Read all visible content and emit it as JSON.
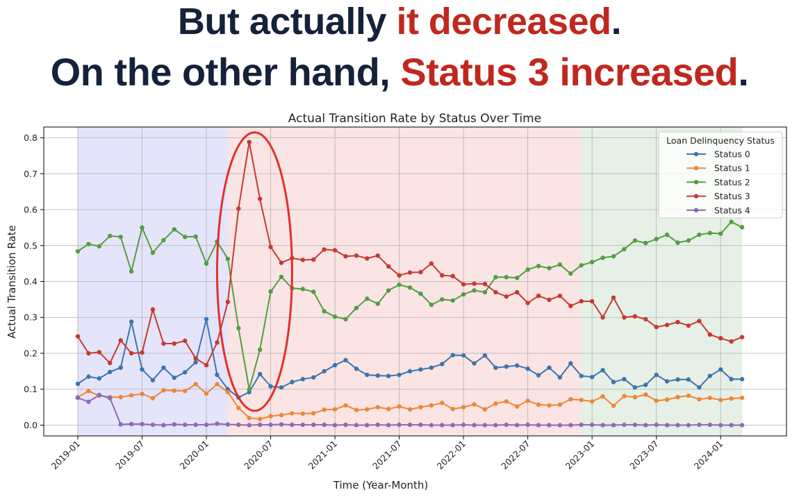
{
  "headline": {
    "line1_a": "But actually ",
    "line1_b": "it decreased",
    "line1_c": ".",
    "line2_a": "On the other hand, ",
    "line2_b": "Status 3 increased",
    "line2_c": "."
  },
  "colors": {
    "headline_text": "#14223a",
    "highlight": "#c0281e",
    "period1_bg": "#e4e4fb",
    "period2_bg": "#fae4e4",
    "period3_bg": "#e6f0e6",
    "annotation_ellipse": "#e0302a"
  },
  "chart_data": {
    "type": "line",
    "title": "Actual Transition Rate by Status Over Time",
    "xlabel": "Time (Year-Month)",
    "ylabel": "Actual Transition Rate",
    "ylim": [
      -0.03,
      0.83
    ],
    "yticks": [
      "0.0",
      "0.1",
      "0.2",
      "0.3",
      "0.4",
      "0.5",
      "0.6",
      "0.7",
      "0.8"
    ],
    "xticks": [
      "2019-01",
      "2019-07",
      "2020-01",
      "2020-07",
      "2021-01",
      "2021-07",
      "2022-01",
      "2022-07",
      "2023-01",
      "2023-07",
      "2024-01"
    ],
    "x_start": "2019-01",
    "grid": true,
    "legend_title": "Loan Delinquency Status",
    "legend_position": "top-right",
    "shaded_periods": [
      {
        "start": "2019-01",
        "end": "2020-03",
        "color": "#e4e4fb"
      },
      {
        "start": "2020-03",
        "end": "2022-12",
        "color": "#fae4e4"
      },
      {
        "start": "2022-12",
        "end": "2024-03",
        "color": "#e6f0e6"
      }
    ],
    "annotation": {
      "type": "ellipse",
      "center": "2020-05",
      "x_from": "2020-02",
      "x_to": "2020-09",
      "y_from": 0.04,
      "y_to": 0.815
    },
    "series": [
      {
        "name": "Status 0",
        "color": "#3b75af",
        "values": [
          0.115,
          0.135,
          0.13,
          0.148,
          0.16,
          0.288,
          0.155,
          0.125,
          0.16,
          0.132,
          0.147,
          0.175,
          0.295,
          0.14,
          0.1,
          0.077,
          0.092,
          0.142,
          0.108,
          0.105,
          0.12,
          0.128,
          0.133,
          0.15,
          0.167,
          0.181,
          0.157,
          0.14,
          0.138,
          0.137,
          0.14,
          0.15,
          0.155,
          0.16,
          0.17,
          0.195,
          0.194,
          0.172,
          0.194,
          0.16,
          0.163,
          0.166,
          0.157,
          0.139,
          0.16,
          0.133,
          0.172,
          0.137,
          0.134,
          0.153,
          0.12,
          0.128,
          0.105,
          0.112,
          0.14,
          0.122,
          0.127,
          0.127,
          0.105,
          0.137,
          0.155,
          0.128,
          0.128
        ]
      },
      {
        "name": "Status 1",
        "color": "#ef8636",
        "values": [
          0.078,
          0.095,
          0.082,
          0.078,
          0.078,
          0.083,
          0.087,
          0.075,
          0.097,
          0.096,
          0.095,
          0.114,
          0.088,
          0.114,
          0.092,
          0.048,
          0.02,
          0.017,
          0.025,
          0.028,
          0.033,
          0.032,
          0.033,
          0.043,
          0.044,
          0.055,
          0.042,
          0.044,
          0.05,
          0.045,
          0.052,
          0.044,
          0.05,
          0.055,
          0.062,
          0.045,
          0.05,
          0.058,
          0.044,
          0.06,
          0.066,
          0.052,
          0.068,
          0.057,
          0.055,
          0.057,
          0.072,
          0.07,
          0.066,
          0.08,
          0.054,
          0.081,
          0.078,
          0.085,
          0.068,
          0.071,
          0.078,
          0.082,
          0.072,
          0.076,
          0.07,
          0.074,
          0.076
        ]
      },
      {
        "name": "Status 2",
        "color": "#519e3e",
        "values": [
          0.484,
          0.504,
          0.498,
          0.527,
          0.524,
          0.428,
          0.55,
          0.48,
          0.515,
          0.545,
          0.524,
          0.525,
          0.45,
          0.511,
          0.463,
          0.27,
          0.1,
          0.21,
          0.372,
          0.413,
          0.381,
          0.379,
          0.371,
          0.317,
          0.302,
          0.295,
          0.326,
          0.352,
          0.338,
          0.375,
          0.391,
          0.383,
          0.366,
          0.335,
          0.35,
          0.347,
          0.364,
          0.375,
          0.37,
          0.412,
          0.412,
          0.41,
          0.433,
          0.443,
          0.437,
          0.447,
          0.422,
          0.445,
          0.454,
          0.466,
          0.47,
          0.49,
          0.514,
          0.507,
          0.518,
          0.53,
          0.508,
          0.514,
          0.53,
          0.535,
          0.533,
          0.566,
          0.551
        ]
      },
      {
        "name": "Status 3",
        "color": "#c53a32",
        "values": [
          0.247,
          0.2,
          0.203,
          0.173,
          0.236,
          0.2,
          0.202,
          0.322,
          0.227,
          0.227,
          0.235,
          0.186,
          0.167,
          0.23,
          0.343,
          0.603,
          0.788,
          0.63,
          0.496,
          0.452,
          0.465,
          0.46,
          0.461,
          0.489,
          0.487,
          0.47,
          0.472,
          0.464,
          0.472,
          0.442,
          0.417,
          0.425,
          0.426,
          0.45,
          0.417,
          0.415,
          0.392,
          0.394,
          0.393,
          0.37,
          0.358,
          0.37,
          0.34,
          0.36,
          0.349,
          0.36,
          0.332,
          0.345,
          0.345,
          0.3,
          0.355,
          0.3,
          0.303,
          0.295,
          0.273,
          0.279,
          0.287,
          0.277,
          0.29,
          0.252,
          0.242,
          0.233,
          0.245
        ]
      },
      {
        "name": "Status 4",
        "color": "#8d69b8",
        "values": [
          0.076,
          0.065,
          0.084,
          0.075,
          0.002,
          0.003,
          0.003,
          0.001,
          0.0,
          0.002,
          0.001,
          0.001,
          0.001,
          0.004,
          0.002,
          0.001,
          0.0,
          0.001,
          0.001,
          0.002,
          0.001,
          0.001,
          0.001,
          0.001,
          0.0,
          0.001,
          0.0,
          0.0,
          0.001,
          0.0,
          0.001,
          0.001,
          0.001,
          0.0,
          0.0,
          0.0,
          0.001,
          0.0,
          0.0,
          0.0,
          0.001,
          0.0,
          0.001,
          0.0,
          0.0,
          0.0,
          0.0,
          0.001,
          0.001,
          0.0,
          0.0,
          0.001,
          0.001,
          0.0,
          0.001,
          0.0,
          0.0,
          0.0,
          0.001,
          0.001,
          0.0,
          0.0,
          0.0
        ]
      }
    ]
  }
}
